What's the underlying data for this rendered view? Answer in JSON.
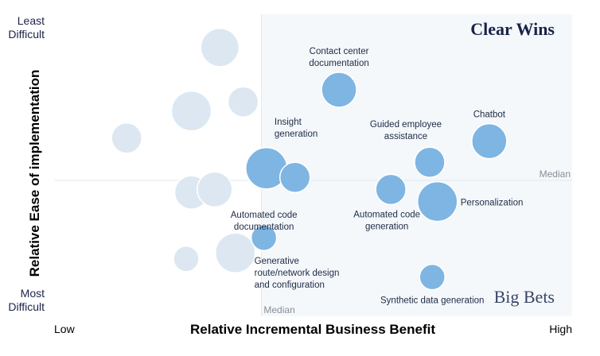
{
  "chart_data": {
    "type": "scatter",
    "subtype": "bubble",
    "xlabel": "Relative Incremental Business Benefit",
    "ylabel": "Relative Ease of implementation",
    "x_tick_labels": {
      "low": "Low",
      "high": "High"
    },
    "y_tick_labels": {
      "top": [
        "Least",
        "Difficult"
      ],
      "bottom": [
        "Most",
        "Difficult"
      ]
    },
    "xlim": [
      0,
      100
    ],
    "ylim": [
      0,
      100
    ],
    "median": {
      "x": 40,
      "y": 45,
      "x_label": "Median",
      "y_label": "Median"
    },
    "quadrants": {
      "top_right": "Clear Wins",
      "bottom_right": "Big Bets"
    },
    "colors": {
      "highlighted": "#7eb5e2",
      "background_bubble": "#dce7f1",
      "quadrant_fill": "#f4f8fb",
      "median_line": "#e3e8ed",
      "axis_text": "#1a2349",
      "median_text": "#8a8f98",
      "label_text": "#1f2a44"
    },
    "highlighted_points": [
      {
        "label": [
          "Contact center",
          "documentation"
        ],
        "x": 55,
        "y": 75,
        "size": 22,
        "label_pos": "above"
      },
      {
        "label": [
          "Chatbot"
        ],
        "x": 84,
        "y": 58,
        "size": 22,
        "label_pos": "above"
      },
      {
        "label": [
          "Guided employee",
          "assistance"
        ],
        "x": 72.5,
        "y": 51,
        "size": 19,
        "label_pos": "above-left"
      },
      {
        "label": [
          "Insight",
          "generation"
        ],
        "x": 41,
        "y": 49,
        "size": 26,
        "label_pos": "above-right"
      },
      {
        "label": [],
        "x": 46.5,
        "y": 46,
        "size": 19,
        "label_pos": "none"
      },
      {
        "label": [
          "Automated code",
          "documentation"
        ],
        "x": 0,
        "y": 0,
        "size": 0,
        "label_pos": "none",
        "hidden_label_ref": true
      },
      {
        "label": [
          "Automated code",
          "generation"
        ],
        "x": 65,
        "y": 42,
        "size": 19,
        "label_pos": "below-left"
      },
      {
        "label": [
          "Personalization"
        ],
        "x": 74,
        "y": 38,
        "size": 25,
        "label_pos": "right"
      },
      {
        "label": [
          "Generative",
          "route/network design",
          "and configuration"
        ],
        "x": 40.5,
        "y": 26,
        "size": 16,
        "label_pos": "below-right"
      },
      {
        "label": [
          "Synthetic data generation"
        ],
        "x": 73,
        "y": 13,
        "size": 16,
        "label_pos": "below"
      }
    ],
    "other_points": [
      {
        "x": 32,
        "y": 89,
        "size": 24
      },
      {
        "x": 26.5,
        "y": 68,
        "size": 25
      },
      {
        "x": 36.5,
        "y": 71,
        "size": 19
      },
      {
        "x": 14,
        "y": 59,
        "size": 19
      },
      {
        "x": 26.5,
        "y": 41,
        "size": 21
      },
      {
        "x": 31,
        "y": 42,
        "size": 22
      },
      {
        "x": 25.5,
        "y": 19,
        "size": 16
      },
      {
        "x": 35,
        "y": 21,
        "size": 25
      }
    ],
    "extra_labels": [
      {
        "label": [
          "Automated code",
          "documentation"
        ],
        "anchor_x": 40.5,
        "anchor_y": 39,
        "pos": "below"
      }
    ]
  }
}
